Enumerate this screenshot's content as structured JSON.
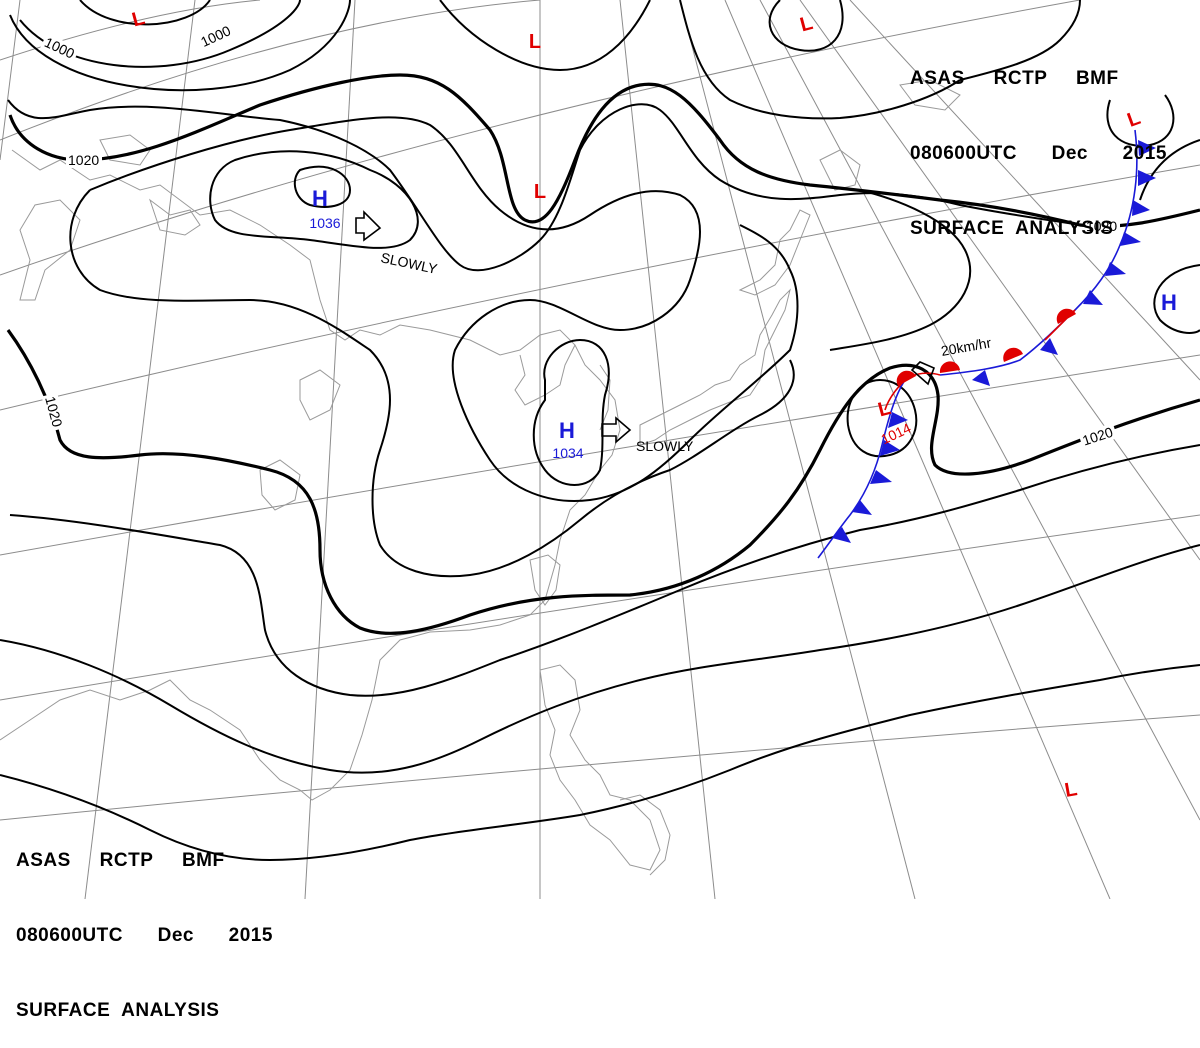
{
  "header_top_right": {
    "line1": "ASAS     RCTP     BMF",
    "line2": "080600UTC      Dec      2015",
    "line3": "SURFACE  ANALYSIS"
  },
  "header_bottom_left": {
    "line1": "ASAS     RCTP     BMF",
    "line2": "080600UTC      Dec      2015",
    "line3": "SURFACE  ANALYSIS"
  },
  "colors": {
    "isobar": "#000000",
    "coastline": "#9a9a9a",
    "grid": "#8c8c8c",
    "high": "#1a1ad8",
    "low": "#e00000",
    "cold_front": "#1a1ad8",
    "warm_front": "#e00000"
  },
  "pressure_systems": [
    {
      "type": "H",
      "pressure": "1036",
      "motion": "SLOWLY"
    },
    {
      "type": "H",
      "pressure": "1034",
      "motion": "SLOWLY"
    },
    {
      "type": "H",
      "pressure": ""
    },
    {
      "type": "L",
      "pressure": "1014",
      "motion": "20km/hr"
    },
    {
      "type": "L",
      "pressure": ""
    },
    {
      "type": "L",
      "pressure": ""
    },
    {
      "type": "L",
      "pressure": ""
    },
    {
      "type": "L",
      "pressure": ""
    },
    {
      "type": "L",
      "pressure": ""
    },
    {
      "type": "L",
      "pressure": ""
    }
  ],
  "isobar_labels": [
    "1000",
    "1000",
    "1020",
    "1020",
    "1020",
    "1020"
  ]
}
